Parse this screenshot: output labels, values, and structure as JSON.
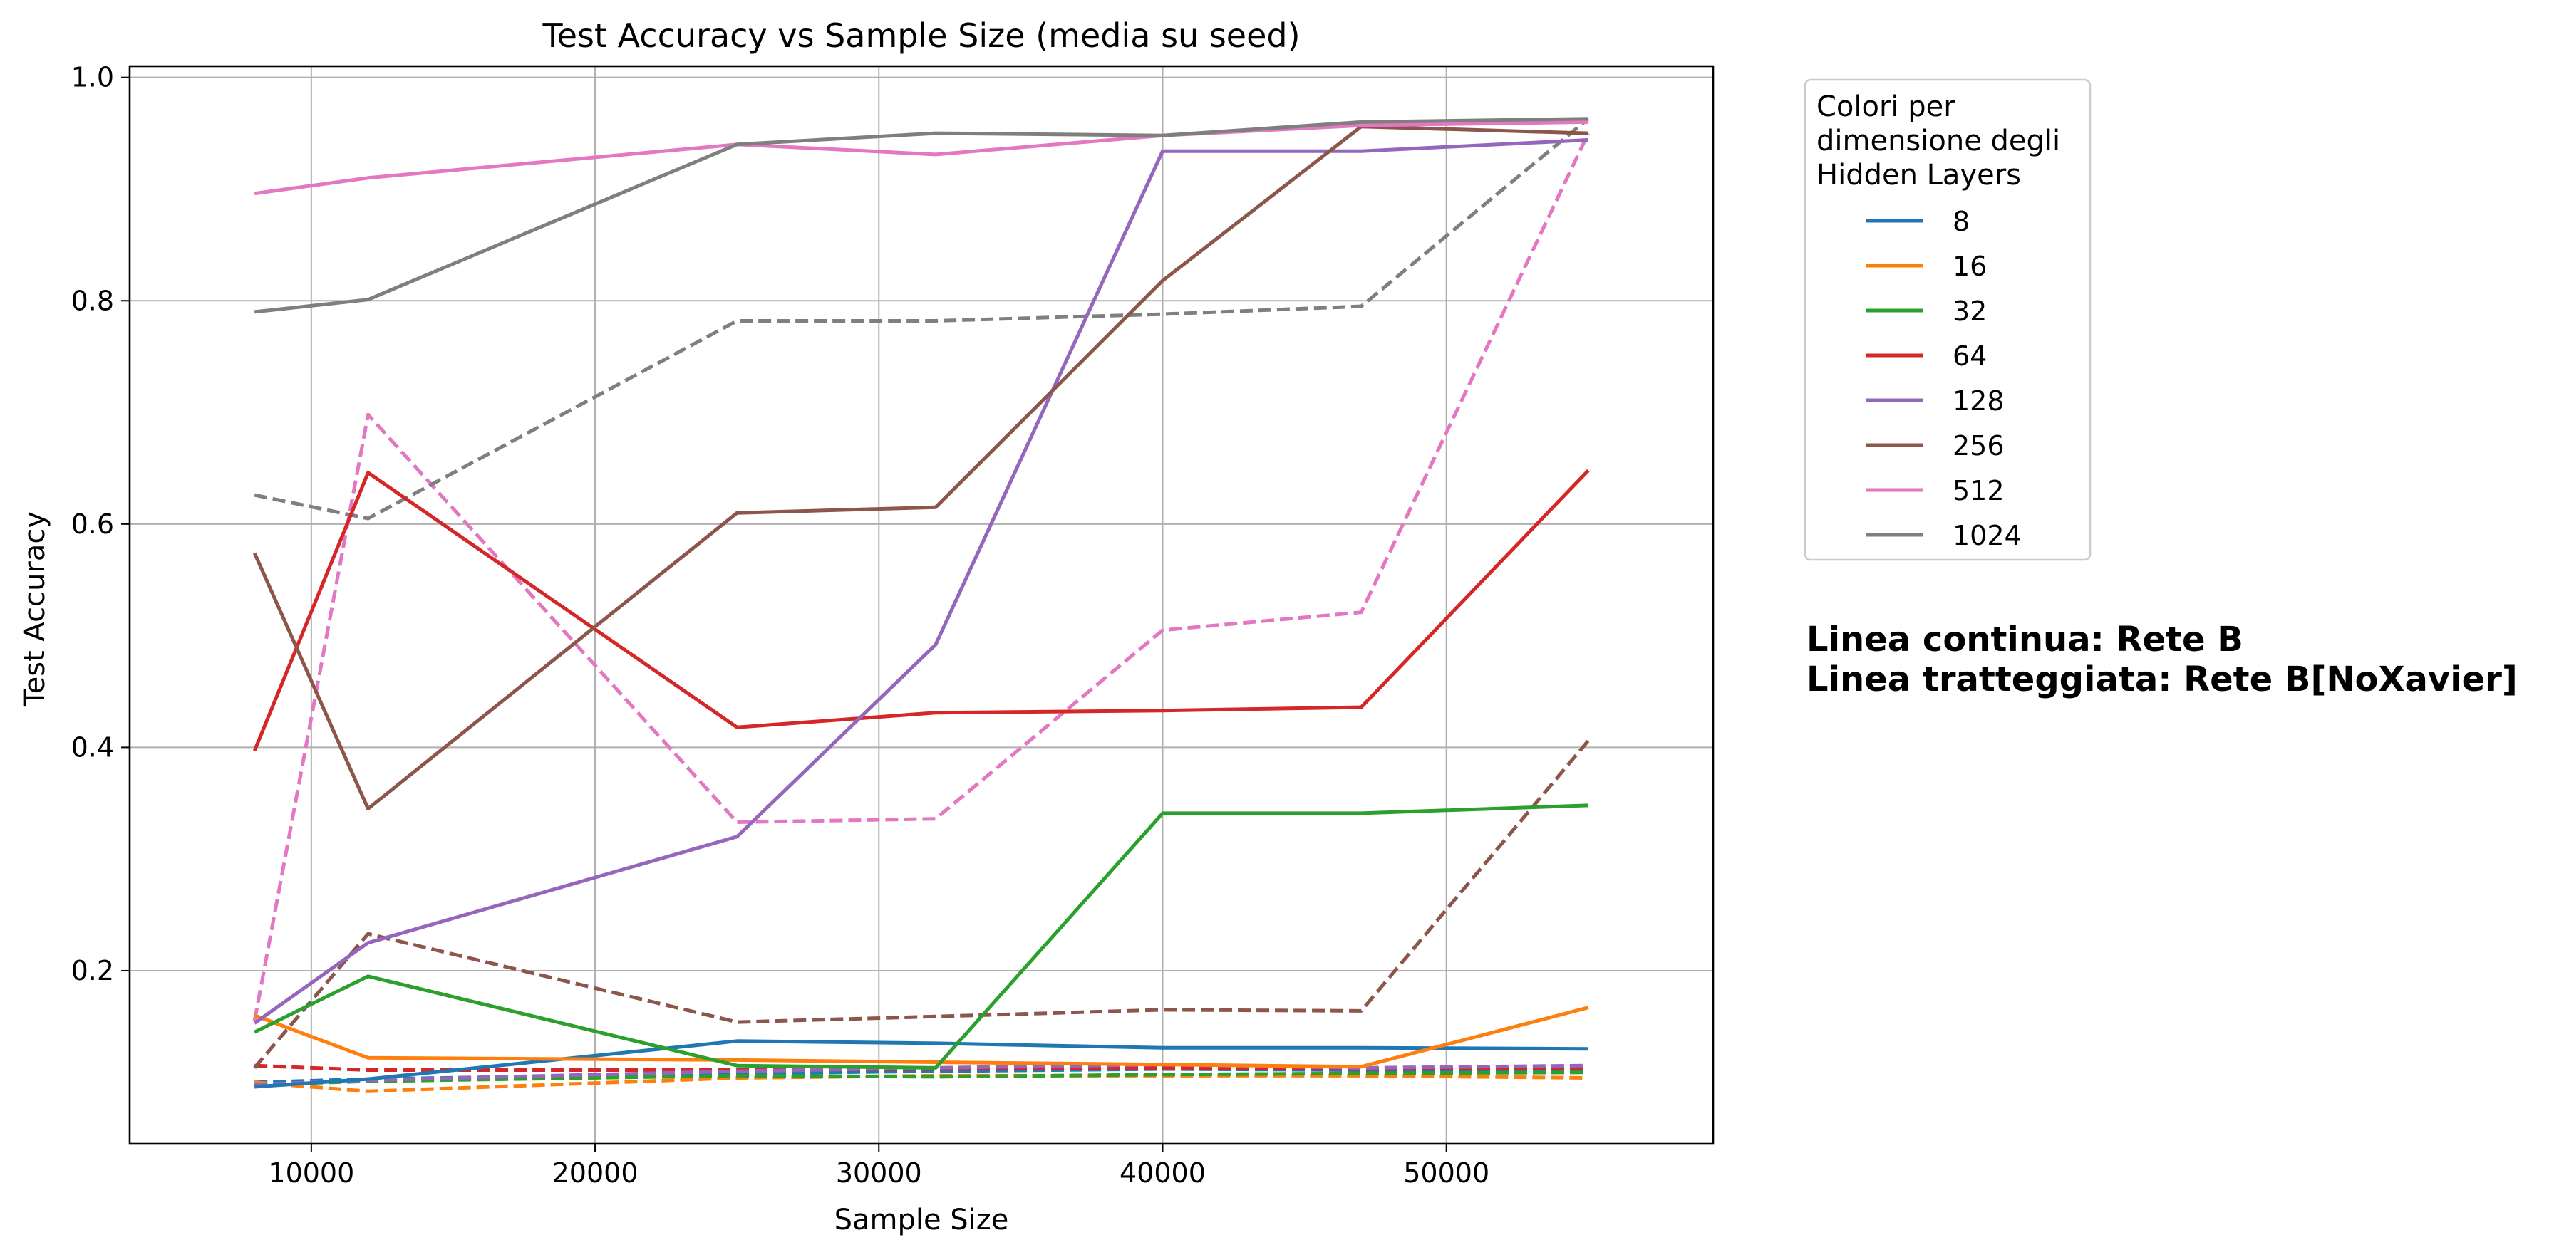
{
  "chart_data": {
    "type": "line",
    "title": "Test Accuracy vs Sample Size (media su seed)",
    "xlabel": "Sample Size",
    "ylabel": "Test Accuracy",
    "x": [
      8000,
      12000,
      25000,
      32000,
      40000,
      47000,
      55000
    ],
    "xlim": [
      3600,
      59400
    ],
    "ylim": [
      0.045,
      1.01
    ],
    "xticks": [
      10000,
      20000,
      30000,
      40000,
      50000
    ],
    "yticks": [
      0.2,
      0.4,
      0.6,
      0.8,
      1.0
    ],
    "xtick_labels": [
      "10000",
      "20000",
      "30000",
      "40000",
      "50000"
    ],
    "ytick_labels": [
      "0.2",
      "0.4",
      "0.6",
      "0.8",
      "1.0"
    ],
    "grid": true,
    "legend": {
      "title_lines": [
        "Colori per",
        "dimensione degli",
        "Hidden Layers"
      ],
      "placement": "outside-right-top"
    },
    "series": [
      {
        "name": "8",
        "color": "#1f77b4",
        "solid": [
          0.096,
          0.103,
          0.137,
          0.135,
          0.131,
          0.131,
          0.13
        ],
        "dashed": [
          0.1,
          0.103,
          0.108,
          0.11,
          0.112,
          0.111,
          0.112
        ]
      },
      {
        "name": "16",
        "color": "#ff7f0e",
        "solid": [
          0.16,
          0.122,
          0.12,
          0.118,
          0.116,
          0.114,
          0.167
        ],
        "dashed": [
          0.1,
          0.092,
          0.104,
          0.106,
          0.106,
          0.106,
          0.104
        ]
      },
      {
        "name": "32",
        "color": "#2ca02c",
        "solid": [
          0.145,
          0.195,
          0.115,
          0.113,
          0.341,
          0.341,
          0.348
        ],
        "dashed": [
          0.098,
          0.101,
          0.106,
          0.105,
          0.107,
          0.108,
          0.109
        ]
      },
      {
        "name": "64",
        "color": "#d62728",
        "solid": [
          0.397,
          0.646,
          0.418,
          0.431,
          0.433,
          0.436,
          0.648
        ],
        "dashed": [
          0.115,
          0.111,
          0.111,
          0.112,
          0.113,
          0.112,
          0.113
        ]
      },
      {
        "name": "128",
        "color": "#9467bd",
        "solid": [
          0.153,
          0.225,
          0.32,
          0.492,
          0.934,
          0.934,
          0.944
        ],
        "dashed": [
          0.098,
          0.102,
          0.11,
          0.113,
          0.116,
          0.113,
          0.115
        ]
      },
      {
        "name": "256",
        "color": "#8c564b",
        "solid": [
          0.574,
          0.345,
          0.61,
          0.615,
          0.818,
          0.956,
          0.95
        ],
        "dashed": [
          0.113,
          0.233,
          0.154,
          0.159,
          0.165,
          0.164,
          0.406
        ]
      },
      {
        "name": "512",
        "color": "#e377c2",
        "solid": [
          0.896,
          0.91,
          0.94,
          0.931,
          0.948,
          0.957,
          0.96
        ],
        "dashed": [
          0.155,
          0.698,
          0.333,
          0.336,
          0.505,
          0.521,
          0.95
        ]
      },
      {
        "name": "1024",
        "color": "#7f7f7f",
        "solid": [
          0.79,
          0.801,
          0.94,
          0.95,
          0.948,
          0.96,
          0.963
        ],
        "dashed": [
          0.626,
          0.605,
          0.782,
          0.782,
          0.788,
          0.795,
          0.963
        ]
      }
    ],
    "annotations": [
      "Linea continua: Rete B",
      "Linea tratteggiata: Rete B[NoXavier]"
    ]
  }
}
